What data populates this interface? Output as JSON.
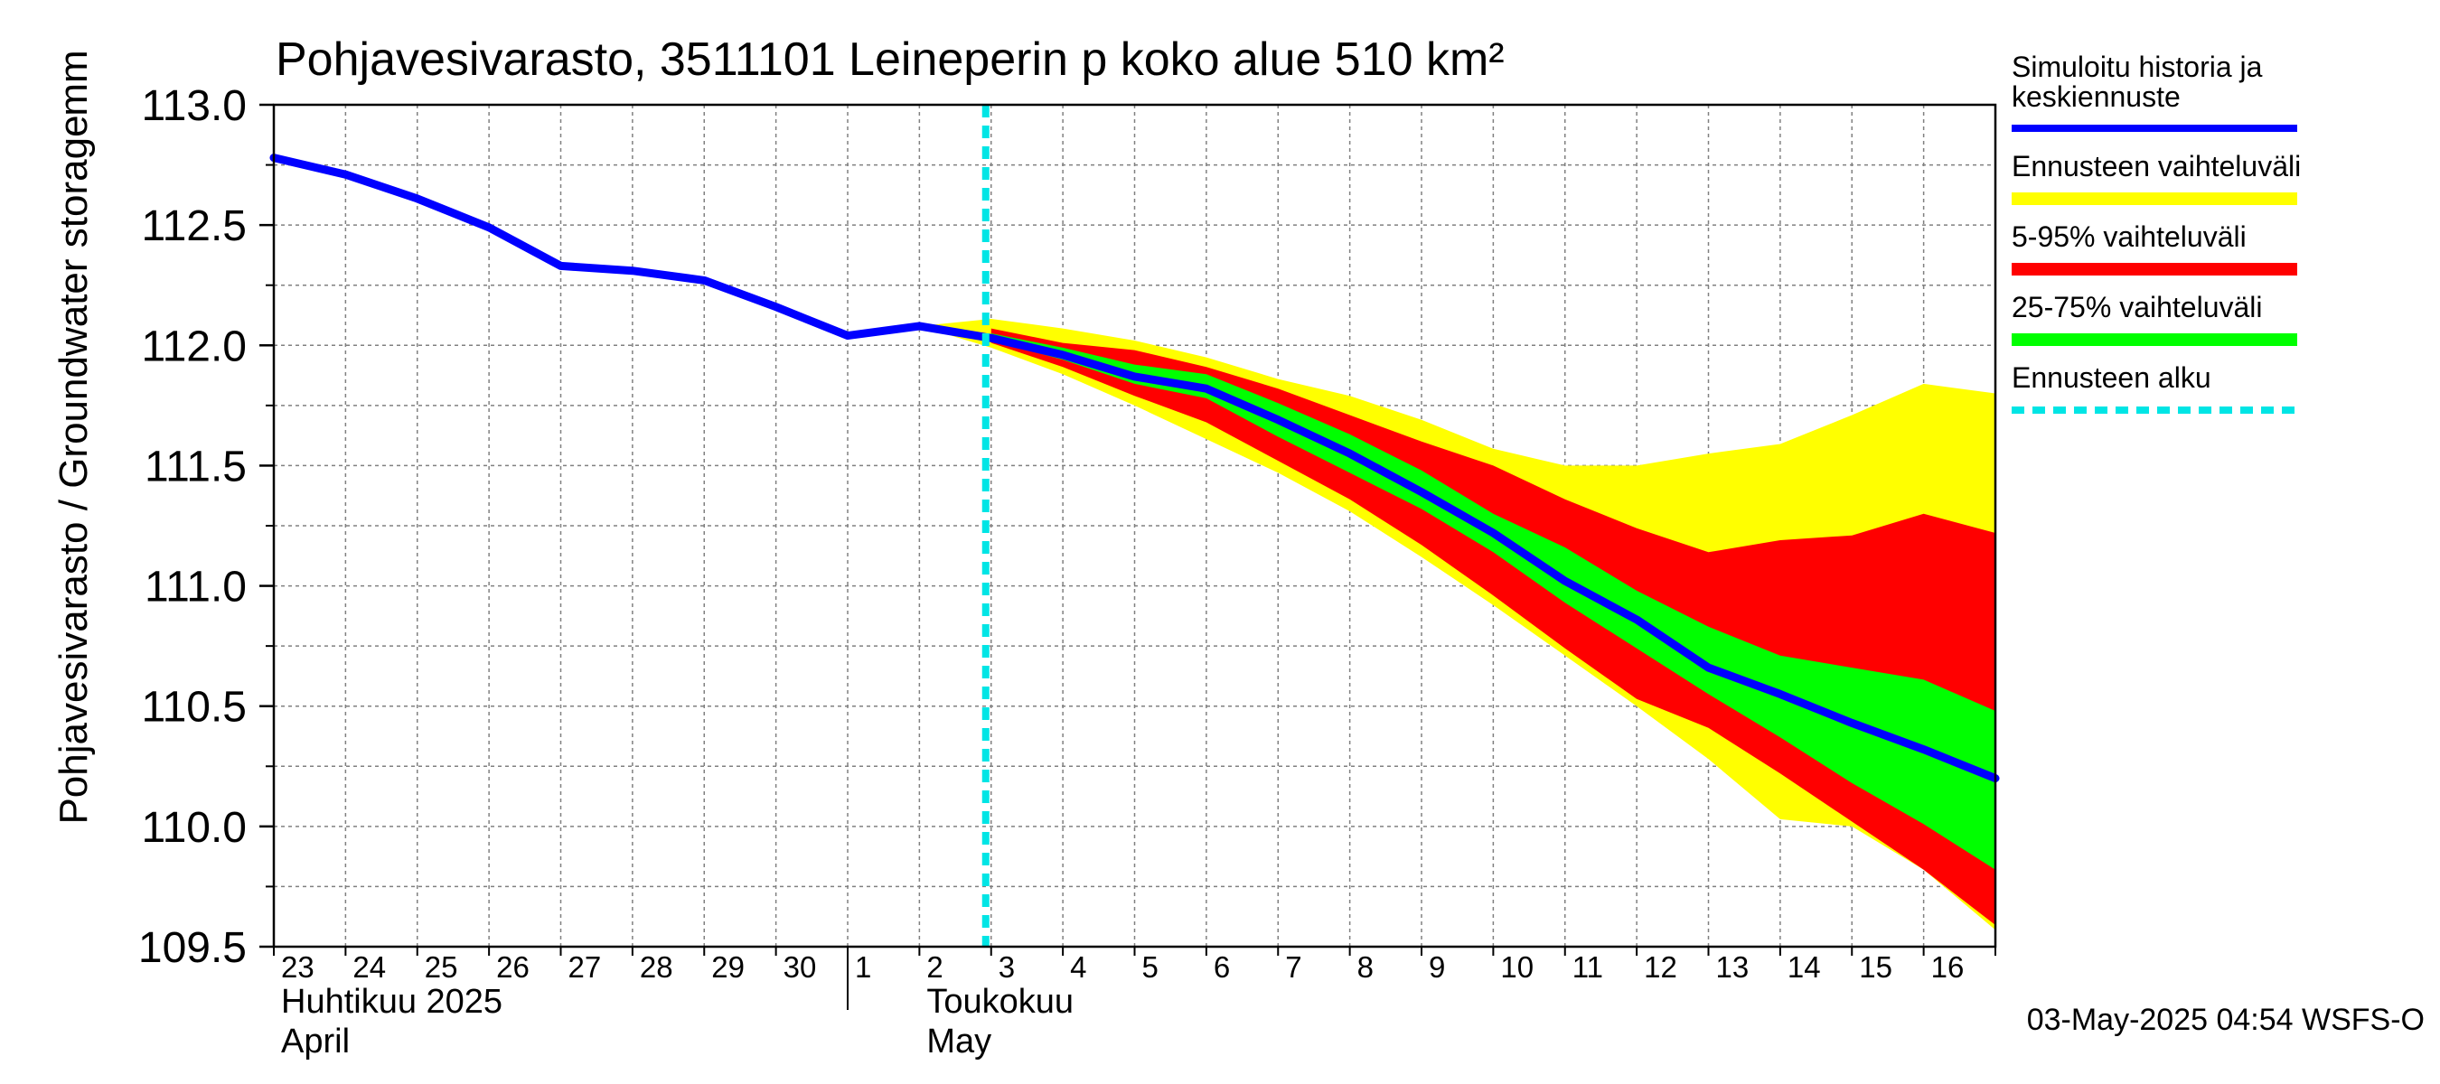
{
  "chart_data": {
    "type": "area",
    "title": "Pohjavesivarasto, 3511101 Leineperin p koko alue 510 km²",
    "ylabel": "Pohjavesivarasto / Groundwater storage",
    "yunit": "mm",
    "ylim": [
      109.5,
      113.0
    ],
    "yticks": [
      109.5,
      110.0,
      110.5,
      111.0,
      111.5,
      112.0,
      112.5,
      113.0
    ],
    "ytick_labels": [
      "109.5",
      "110.0",
      "110.5",
      "111.0",
      "111.5",
      "112.0",
      "112.5",
      "113.0"
    ],
    "x_start": "2025-04-23",
    "x_days": 24,
    "day_labels": [
      "23",
      "24",
      "25",
      "26",
      "27",
      "28",
      "29",
      "30",
      "1",
      "2",
      "3",
      "4",
      "5",
      "6",
      "7",
      "8",
      "9",
      "10",
      "11",
      "12",
      "13",
      "14",
      "15",
      "16"
    ],
    "month_labels": [
      {
        "fi": "Huhtikuu  2025",
        "en": "April",
        "day_index": 0
      },
      {
        "fi": "Toukokuu",
        "en": "May",
        "day_index": 9
      }
    ],
    "month_boundary_day_index": 8,
    "forecast_start_day_index": 10,
    "grid": true,
    "colors": {
      "history": "#0000ff",
      "range_full": "#ffff00",
      "range_5_95": "#ff0000",
      "range_25_75": "#00ff00",
      "forecast_start": "#00e5e5",
      "grid": "#808080"
    },
    "legend": [
      {
        "label": "Simuloitu historia ja keskiennuste",
        "color": "#0000ff",
        "style": "line"
      },
      {
        "label": "Ennusteen vaihteluväli",
        "color": "#ffff00",
        "style": "band"
      },
      {
        "label": "5-95% vaihteluväli",
        "color": "#ff0000",
        "style": "band"
      },
      {
        "label": "25-75% vaihteluväli",
        "color": "#00ff00",
        "style": "band"
      },
      {
        "label": "Ennusteen alku",
        "color": "#00e5e5",
        "style": "dashed"
      }
    ],
    "series": [
      {
        "name": "Simuloitu historia ja keskiennuste",
        "x": [
          0,
          1,
          2,
          3,
          4,
          5,
          6,
          7,
          8,
          9,
          10,
          11,
          12,
          13,
          14,
          15,
          16,
          17,
          18,
          19,
          20,
          21,
          22,
          23,
          24
        ],
        "values": [
          112.78,
          112.71,
          112.61,
          112.49,
          112.33,
          112.31,
          112.27,
          112.16,
          112.04,
          112.08,
          112.03,
          111.96,
          111.87,
          111.82,
          111.69,
          111.55,
          111.39,
          111.22,
          111.02,
          110.86,
          110.66,
          110.55,
          110.43,
          110.32,
          110.2
        ]
      }
    ],
    "bands": [
      {
        "name": "Ennusteen vaihteluväli",
        "x": [
          9,
          10,
          11,
          12,
          13,
          14,
          15,
          16,
          17,
          18,
          19,
          20,
          21,
          22,
          23,
          24
        ],
        "upper": [
          112.08,
          112.11,
          112.07,
          112.02,
          111.95,
          111.86,
          111.79,
          111.69,
          111.57,
          111.5,
          111.5,
          111.55,
          111.59,
          111.71,
          111.84,
          111.8
        ],
        "lower": [
          112.08,
          111.99,
          111.88,
          111.75,
          111.61,
          111.47,
          111.31,
          111.12,
          110.92,
          110.71,
          110.5,
          110.28,
          110.03,
          110.0,
          109.82,
          109.57
        ]
      },
      {
        "name": "5-95% vaihteluväli",
        "x": [
          10,
          11,
          12,
          13,
          14,
          15,
          16,
          17,
          18,
          19,
          20,
          21,
          22,
          23,
          24
        ],
        "upper": [
          112.07,
          112.01,
          111.98,
          111.91,
          111.82,
          111.71,
          111.6,
          111.5,
          111.36,
          111.24,
          111.14,
          111.19,
          111.21,
          111.3,
          111.22
        ],
        "lower": [
          112.01,
          111.91,
          111.79,
          111.68,
          111.52,
          111.36,
          111.17,
          110.96,
          110.74,
          110.53,
          110.41,
          110.22,
          110.02,
          109.82,
          109.59
        ]
      },
      {
        "name": "25-75% vaihteluväli",
        "x": [
          10,
          11,
          12,
          13,
          14,
          15,
          16,
          17,
          18,
          19,
          20,
          21,
          22,
          23,
          24
        ],
        "upper": [
          112.05,
          111.99,
          111.92,
          111.88,
          111.76,
          111.63,
          111.48,
          111.3,
          111.16,
          110.98,
          110.83,
          110.71,
          110.66,
          110.61,
          110.48
        ],
        "lower": [
          112.02,
          111.94,
          111.84,
          111.78,
          111.62,
          111.47,
          111.32,
          111.14,
          110.93,
          110.74,
          110.55,
          110.37,
          110.18,
          110.01,
          109.82
        ]
      }
    ],
    "footer": "03-May-2025 04:54 WSFS-O"
  }
}
